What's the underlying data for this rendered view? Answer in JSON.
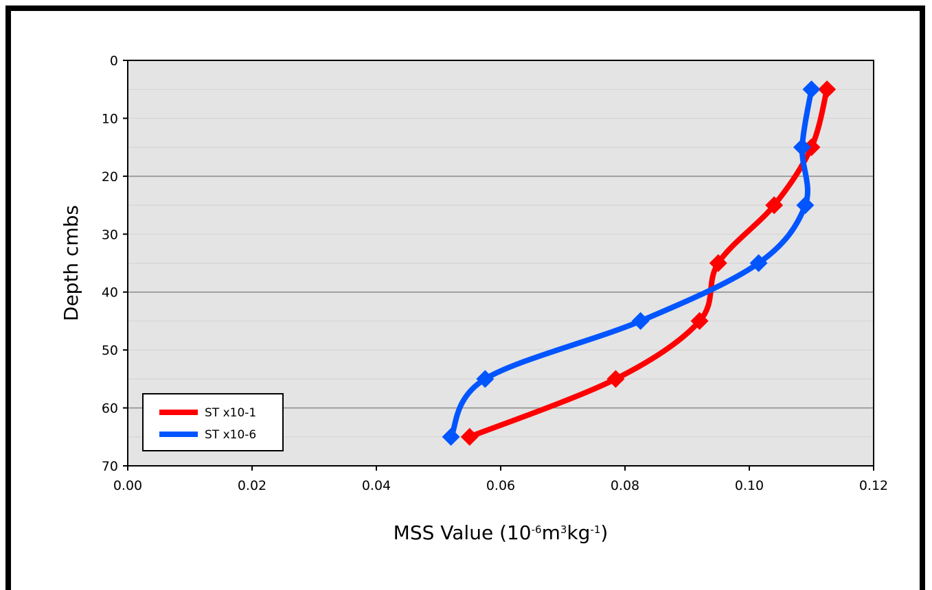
{
  "chart_data": {
    "type": "line",
    "title": "",
    "xlabel": "MSS Value (10",
    "xlabel_sup1": "-6",
    "xlabel_mid": "m",
    "xlabel_sup2": "3",
    "xlabel_mid2": "kg",
    "xlabel_sup3": "-1",
    "xlabel_end": ")",
    "ylabel": "Depth cmbs",
    "xlim": [
      0,
      0.12
    ],
    "ylim": [
      0,
      70
    ],
    "y_inverted": true,
    "x_ticks": [
      "0.00",
      "0.02",
      "0.04",
      "0.06",
      "0.08",
      "0.10",
      "0.12"
    ],
    "x_tick_values": [
      0,
      0.02,
      0.04,
      0.06,
      0.08,
      0.1,
      0.12
    ],
    "y_ticks": [
      "0",
      "10",
      "20",
      "30",
      "40",
      "50",
      "60",
      "70"
    ],
    "y_tick_values": [
      0,
      10,
      20,
      30,
      40,
      50,
      60,
      70
    ],
    "grid": true,
    "plot_background": "#e4e4e4",
    "legend_position": "bottom-left",
    "series": [
      {
        "name": "ST x10-1",
        "color": "#ff0000",
        "points": [
          {
            "x": 0.1125,
            "y": 5
          },
          {
            "x": 0.11,
            "y": 15
          },
          {
            "x": 0.104,
            "y": 25
          },
          {
            "x": 0.095,
            "y": 35
          },
          {
            "x": 0.092,
            "y": 45
          },
          {
            "x": 0.0785,
            "y": 55
          },
          {
            "x": 0.055,
            "y": 65
          }
        ]
      },
      {
        "name": "ST x10-6",
        "color": "#0055ff",
        "points": [
          {
            "x": 0.11,
            "y": 5
          },
          {
            "x": 0.1085,
            "y": 15
          },
          {
            "x": 0.109,
            "y": 25
          },
          {
            "x": 0.1015,
            "y": 35
          },
          {
            "x": 0.0825,
            "y": 45
          },
          {
            "x": 0.0575,
            "y": 55
          },
          {
            "x": 0.052,
            "y": 65
          }
        ]
      }
    ]
  }
}
